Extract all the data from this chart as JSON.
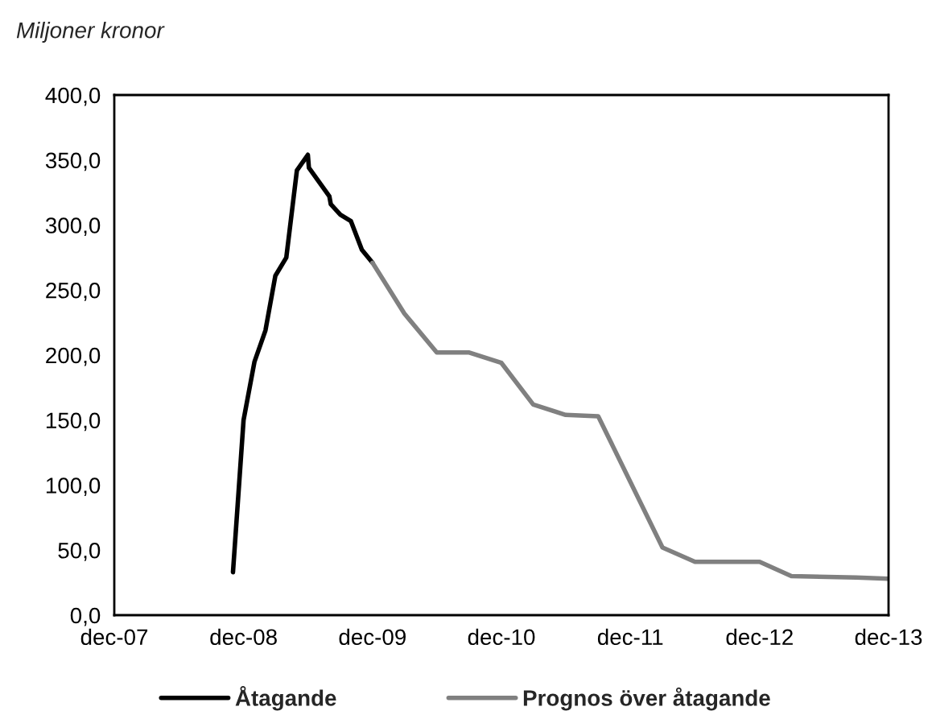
{
  "chart_data": {
    "type": "line",
    "ylabel": "Miljoner kronor",
    "series": [
      {
        "name": "Åtagande",
        "color": "#000000",
        "x": [
          "2008-11-01",
          "2008-12-01",
          "2009-01-01",
          "2009-02-01",
          "2009-03-01",
          "2009-04-01",
          "2009-05-01",
          "2009-06-01",
          "2009-06-04",
          "2009-08-01",
          "2009-08-05",
          "2009-09-01",
          "2009-10-01",
          "2009-11-01",
          "2009-12-01"
        ],
        "values": [
          33,
          150,
          195,
          219,
          261,
          275,
          342,
          354,
          344,
          322,
          316,
          308,
          303,
          281,
          271
        ]
      },
      {
        "name": "Prognos över åtagande",
        "color": "#808080",
        "x": [
          "2009-12-01",
          "2010-03-01",
          "2010-06-01",
          "2010-09-01",
          "2010-12-01",
          "2011-03-01",
          "2011-06-01",
          "2011-09-01",
          "2012-03-01",
          "2012-06-01",
          "2012-12-01",
          "2013-03-01",
          "2013-09-01",
          "2013-12-01"
        ],
        "values": [
          271,
          232,
          202,
          202,
          194,
          162,
          154,
          153,
          52,
          41,
          41,
          30,
          29,
          28
        ]
      }
    ],
    "xlim": [
      "2007-12",
      "2013-12"
    ],
    "xticks": [
      {
        "value": "2007-12",
        "label": "dec-07"
      },
      {
        "value": "2008-12",
        "label": "dec-08"
      },
      {
        "value": "2009-12",
        "label": "dec-09"
      },
      {
        "value": "2010-12",
        "label": "dec-10"
      },
      {
        "value": "2011-12",
        "label": "dec-11"
      },
      {
        "value": "2012-12",
        "label": "dec-12"
      },
      {
        "value": "2013-12",
        "label": "dec-13"
      }
    ],
    "ylim": [
      0,
      400
    ],
    "yticks": [
      {
        "value": 0,
        "label": "0,0"
      },
      {
        "value": 50,
        "label": "50,0"
      },
      {
        "value": 100,
        "label": "100,0"
      },
      {
        "value": 150,
        "label": "150,0"
      },
      {
        "value": 200,
        "label": "200,0"
      },
      {
        "value": 250,
        "label": "250,0"
      },
      {
        "value": 300,
        "label": "300,0"
      },
      {
        "value": 350,
        "label": "350,0"
      },
      {
        "value": 400,
        "label": "400,0"
      }
    ],
    "legend": "bottom",
    "grid": false,
    "line_style": "solid",
    "marker": "none"
  }
}
